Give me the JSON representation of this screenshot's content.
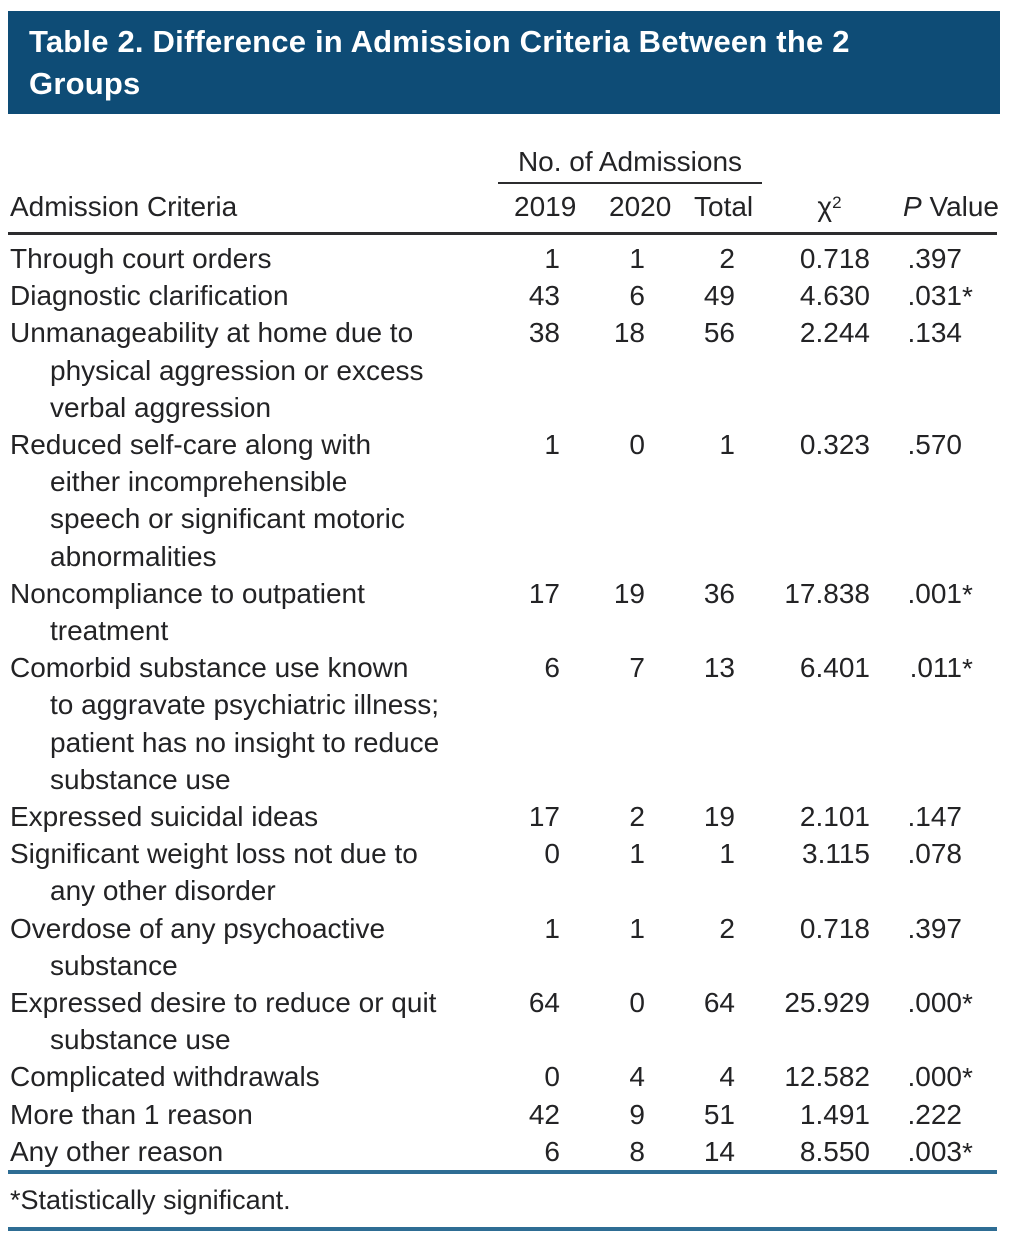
{
  "table": {
    "title": "Table 2. Difference in Admission Criteria Between the 2\nGroups",
    "group_header": "No. of Admissions",
    "columns": {
      "criteria": "Admission Criteria",
      "y2019": "2019",
      "y2020": "2020",
      "total": "Total",
      "chi": "χ",
      "chi_sup": "2",
      "p_italic": "P",
      "p_rest": " Value"
    },
    "rows": [
      {
        "criteria": "Through court orders",
        "y2019": "1",
        "y2020": "1",
        "total": "2",
        "chi2": "0.718",
        "p": ".397",
        "star": ""
      },
      {
        "criteria": "Diagnostic clarification",
        "y2019": "43",
        "y2020": "6",
        "total": "49",
        "chi2": "4.630",
        "p": ".031",
        "star": "*"
      },
      {
        "criteria": "Unmanageability at home due to\nphysical aggression or excess\nverbal aggression",
        "y2019": "38",
        "y2020": "18",
        "total": "56",
        "chi2": "2.244",
        "p": ".134",
        "star": ""
      },
      {
        "criteria": "Reduced self-care along with\neither incomprehensible\nspeech or significant motoric\nabnormalities",
        "y2019": "1",
        "y2020": "0",
        "total": "1",
        "chi2": "0.323",
        "p": ".570",
        "star": ""
      },
      {
        "criteria": "Noncompliance to outpatient\ntreatment",
        "y2019": "17",
        "y2020": "19",
        "total": "36",
        "chi2": "17.838",
        "p": ".001",
        "star": "*"
      },
      {
        "criteria": "Comorbid substance use known\nto aggravate psychiatric illness;\npatient has no insight to reduce\nsubstance use",
        "y2019": "6",
        "y2020": "7",
        "total": "13",
        "chi2": "6.401",
        "p": ".011",
        "star": "*"
      },
      {
        "criteria": "Expressed suicidal ideas",
        "y2019": "17",
        "y2020": "2",
        "total": "19",
        "chi2": "2.101",
        "p": ".147",
        "star": ""
      },
      {
        "criteria": "Significant weight loss not due to\nany other disorder",
        "y2019": "0",
        "y2020": "1",
        "total": "1",
        "chi2": "3.115",
        "p": ".078",
        "star": ""
      },
      {
        "criteria": "Overdose of any psychoactive\nsubstance",
        "y2019": "1",
        "y2020": "1",
        "total": "2",
        "chi2": "0.718",
        "p": ".397",
        "star": ""
      },
      {
        "criteria": "Expressed desire to reduce or quit\nsubstance use",
        "y2019": "64",
        "y2020": "0",
        "total": "64",
        "chi2": "25.929",
        "p": ".000",
        "star": "*"
      },
      {
        "criteria": "Complicated withdrawals",
        "y2019": "0",
        "y2020": "4",
        "total": "4",
        "chi2": "12.582",
        "p": ".000",
        "star": "*"
      },
      {
        "criteria": "More than 1 reason",
        "y2019": "42",
        "y2020": "9",
        "total": "51",
        "chi2": "1.491",
        "p": ".222",
        "star": ""
      },
      {
        "criteria": "Any other reason",
        "y2019": "6",
        "y2020": "8",
        "total": "14",
        "chi2": "8.550",
        "p": ".003",
        "star": "*"
      }
    ],
    "footnote": "*Statistically significant.",
    "colors": {
      "header_bg": "#0E4C76",
      "rule_blue": "#2E6D94",
      "rule_dark": "#2C2C2E",
      "text": "#232325"
    }
  }
}
